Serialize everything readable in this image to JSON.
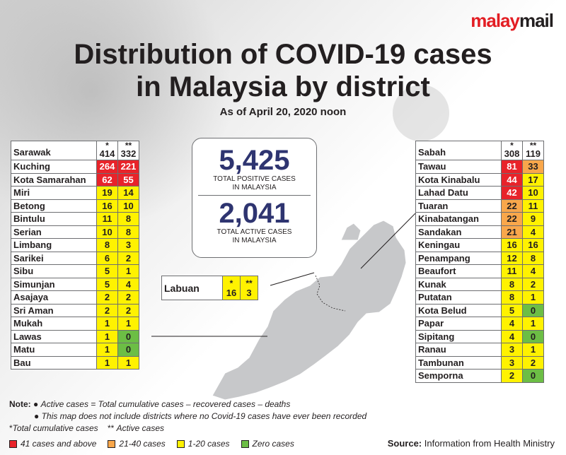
{
  "logo": {
    "part1": "malay",
    "part2": "mail"
  },
  "header": {
    "title_line1": "Distribution of COVID-19 cases",
    "title_line2": "in Malaysia by district",
    "subtitle": "As of April 20, 2020 noon"
  },
  "totals": {
    "positive_value": "5,425",
    "positive_label_1": "TOTAL POSITIVE CASES",
    "positive_label_2": "IN MALAYSIA",
    "active_value": "2,041",
    "active_label_1": "TOTAL ACTIVE CASES",
    "active_label_2": "IN MALAYSIA"
  },
  "notes": {
    "prefix": "Note:",
    "bullet": "●",
    "line1": "Active cases = Total cumulative cases – recovered cases – deaths",
    "line2": "This map does not include districts where no Covid-19 cases have ever been recorded",
    "footnote1_mark": "*",
    "footnote1": "Total cumulative cases",
    "footnote2_mark": "**",
    "footnote2": "Active cases"
  },
  "legend": [
    {
      "label": "41 cases and above",
      "color": "#e8232a"
    },
    {
      "label": "21-40 cases",
      "color": "#f9a74b"
    },
    {
      "label": "1-20 cases",
      "color": "#fff200"
    },
    {
      "label": "Zero cases",
      "color": "#6cbe45"
    }
  ],
  "source": {
    "prefix": "Source:",
    "text": "Information from Health Ministry"
  },
  "chart_data": {
    "type": "table",
    "columns": [
      "*",
      "**"
    ],
    "regions": [
      {
        "name": "Sarawak",
        "total": 414,
        "active": 332,
        "rows": [
          {
            "district": "Kuching",
            "total": 264,
            "active": 221
          },
          {
            "district": "Kota Samarahan",
            "total": 62,
            "active": 55
          },
          {
            "district": "Miri",
            "total": 19,
            "active": 14
          },
          {
            "district": "Betong",
            "total": 16,
            "active": 10
          },
          {
            "district": "Bintulu",
            "total": 11,
            "active": 8
          },
          {
            "district": "Serian",
            "total": 10,
            "active": 8
          },
          {
            "district": "Limbang",
            "total": 8,
            "active": 3
          },
          {
            "district": "Sarikei",
            "total": 6,
            "active": 2
          },
          {
            "district": "Sibu",
            "total": 5,
            "active": 1
          },
          {
            "district": "Simunjan",
            "total": 5,
            "active": 4
          },
          {
            "district": "Asajaya",
            "total": 2,
            "active": 2
          },
          {
            "district": "Sri Aman",
            "total": 2,
            "active": 2
          },
          {
            "district": "Mukah",
            "total": 1,
            "active": 1
          },
          {
            "district": "Lawas",
            "total": 1,
            "active": 0
          },
          {
            "district": "Matu",
            "total": 1,
            "active": 0
          },
          {
            "district": "Bau",
            "total": 1,
            "active": 1
          }
        ]
      },
      {
        "name": "Sabah",
        "total": 308,
        "active": 119,
        "rows": [
          {
            "district": "Tawau",
            "total": 81,
            "active": 33
          },
          {
            "district": "Kota Kinabalu",
            "total": 44,
            "active": 17
          },
          {
            "district": "Lahad Datu",
            "total": 42,
            "active": 10
          },
          {
            "district": "Tuaran",
            "total": 22,
            "active": 11
          },
          {
            "district": "Kinabatangan",
            "total": 22,
            "active": 9
          },
          {
            "district": "Sandakan",
            "total": 21,
            "active": 4
          },
          {
            "district": "Keningau",
            "total": 16,
            "active": 16
          },
          {
            "district": "Penampang",
            "total": 12,
            "active": 8
          },
          {
            "district": "Beaufort",
            "total": 11,
            "active": 4
          },
          {
            "district": "Kunak",
            "total": 8,
            "active": 2
          },
          {
            "district": "Putatan",
            "total": 8,
            "active": 1
          },
          {
            "district": "Kota Belud",
            "total": 5,
            "active": 0
          },
          {
            "district": "Papar",
            "total": 4,
            "active": 1
          },
          {
            "district": "Sipitang",
            "total": 4,
            "active": 0
          },
          {
            "district": "Ranau",
            "total": 3,
            "active": 1
          },
          {
            "district": "Tambunan",
            "total": 3,
            "active": 2
          },
          {
            "district": "Semporna",
            "total": 2,
            "active": 0
          }
        ]
      },
      {
        "name": "Labuan",
        "total": 16,
        "active": 3,
        "rows": []
      }
    ]
  }
}
